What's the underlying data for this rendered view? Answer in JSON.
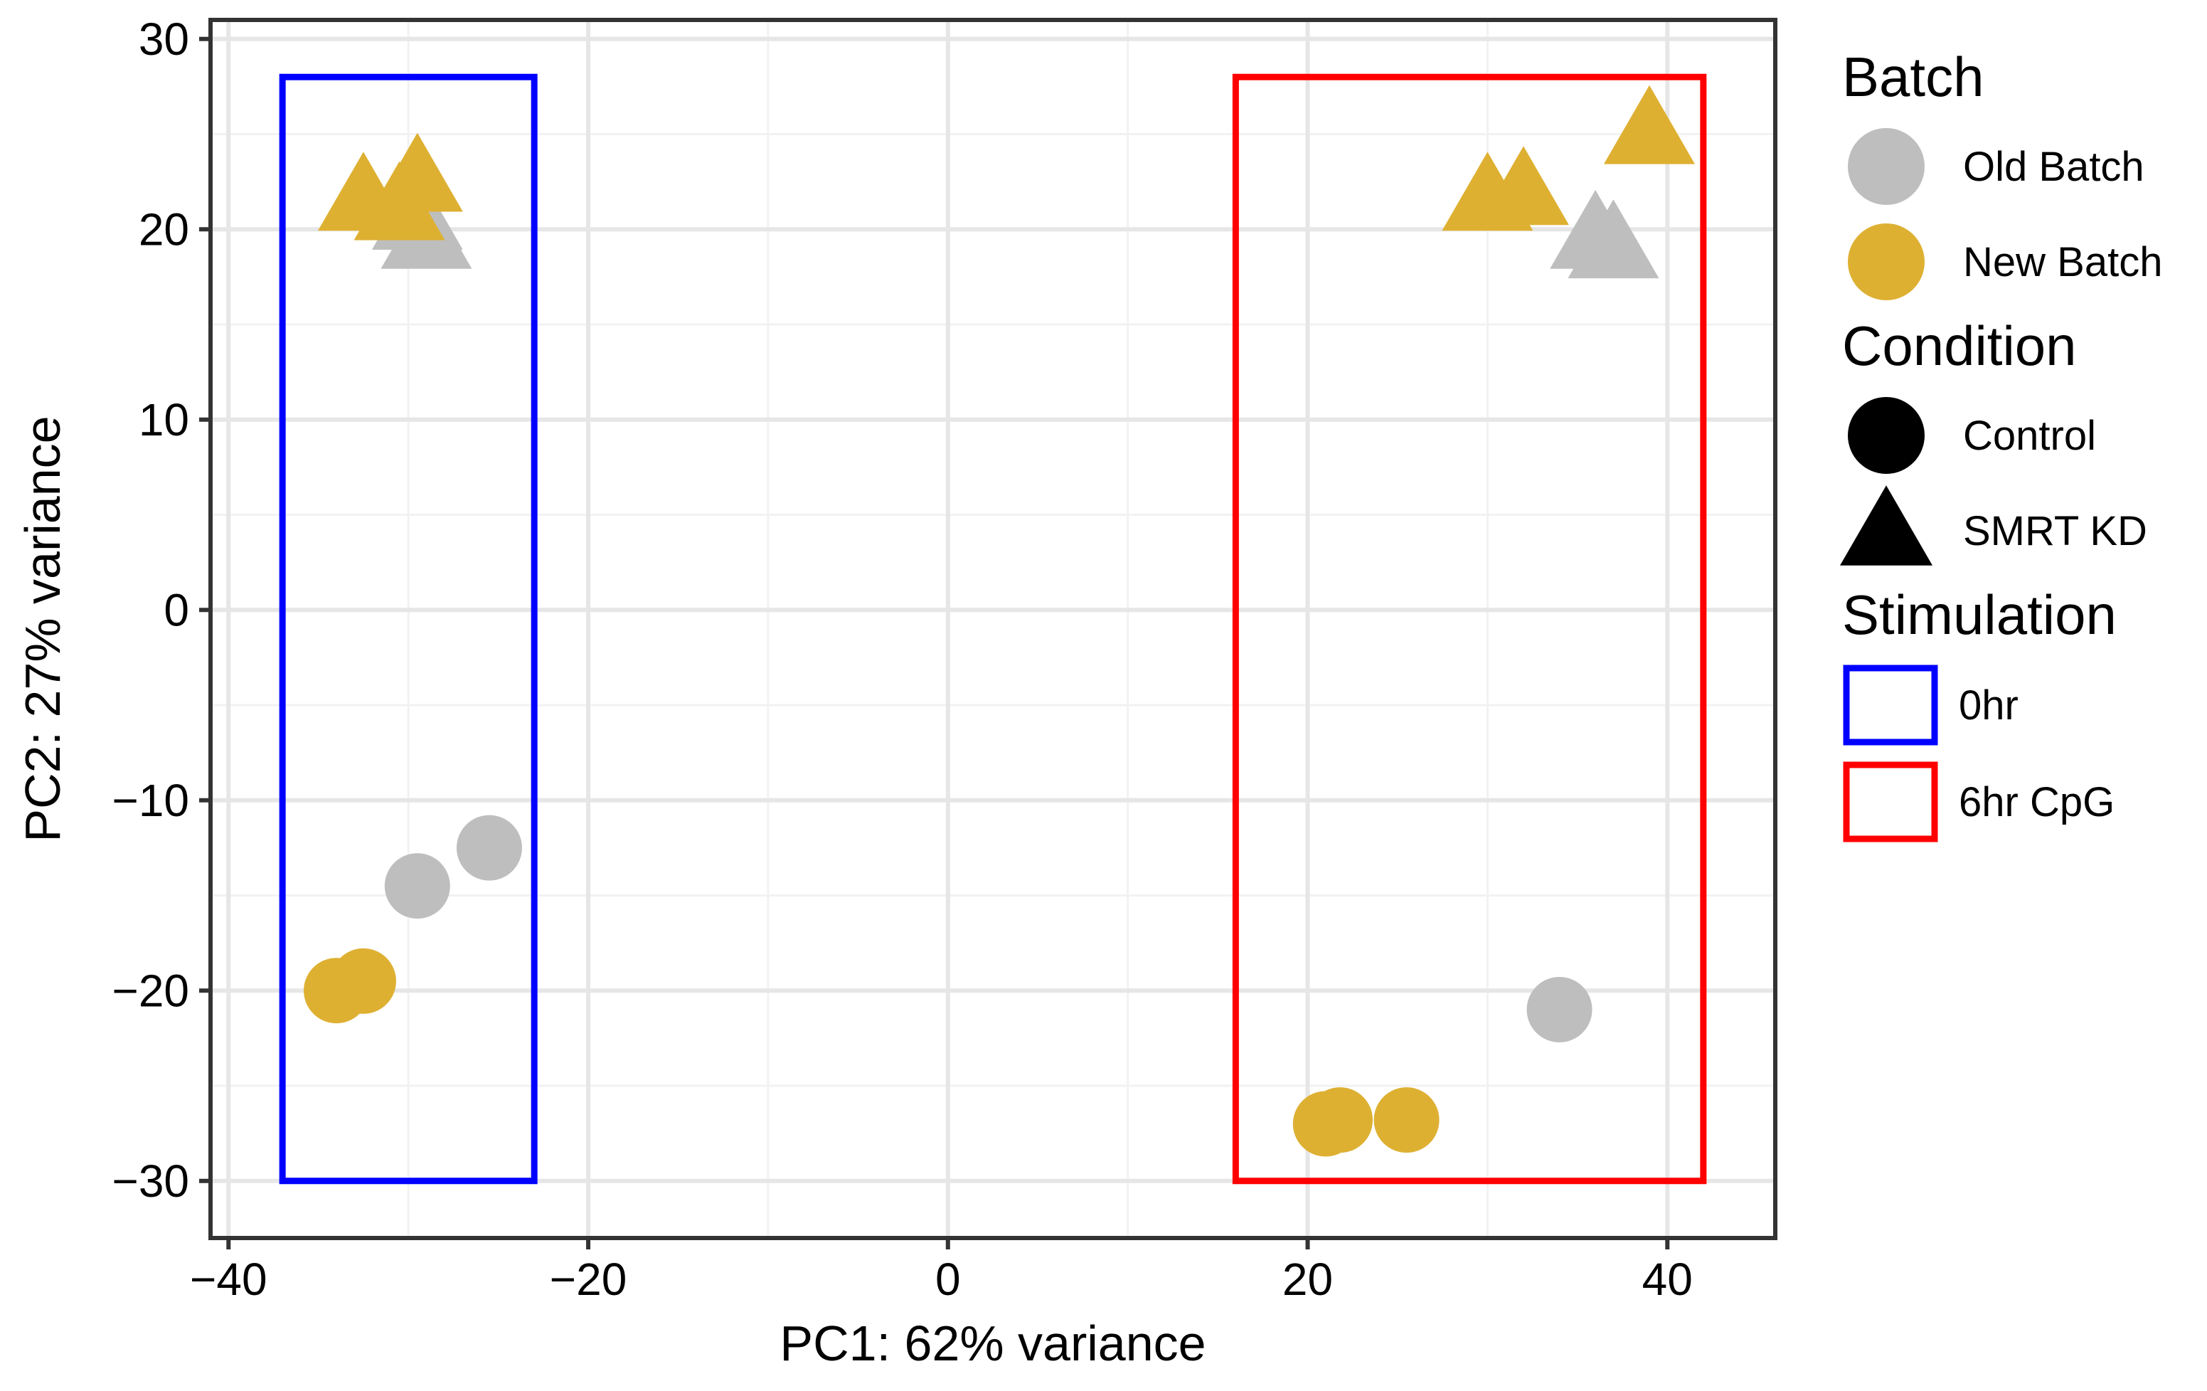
{
  "chart_data": {
    "type": "scatter",
    "title": "",
    "xlabel": "PC1: 62% variance",
    "ylabel": "PC2: 27% variance",
    "xlim": [
      -41,
      46
    ],
    "ylim": [
      -33,
      31
    ],
    "x_ticks": [
      -40,
      -20,
      0,
      20,
      40
    ],
    "y_ticks": [
      30,
      20,
      10,
      0,
      -10,
      -20,
      -30
    ],
    "x_tick_labels": [
      "−40",
      "−20",
      "0",
      "20",
      "40"
    ],
    "y_tick_labels": [
      "30",
      "20",
      "10",
      "0",
      "−10",
      "−20",
      "−30"
    ],
    "grid": true,
    "colors": {
      "Old Batch": "#BEBEBE",
      "New Batch": "#DEB032",
      "0hr": "#0000FF",
      "6hr CpG": "#FF0000",
      "grid_major": "#E6E6E6",
      "grid_minor": "#F2F2F2",
      "panel_border": "#333333"
    },
    "points": [
      {
        "x": -32.5,
        "y": 21.5,
        "batch": "New Batch",
        "condition": "SMRT KD"
      },
      {
        "x": -29.5,
        "y": 20.5,
        "batch": "Old Batch",
        "condition": "SMRT KD"
      },
      {
        "x": -29.0,
        "y": 19.5,
        "batch": "Old Batch",
        "condition": "SMRT KD"
      },
      {
        "x": -30.5,
        "y": 21.0,
        "batch": "New Batch",
        "condition": "SMRT KD"
      },
      {
        "x": -29.5,
        "y": 22.5,
        "batch": "New Batch",
        "condition": "SMRT KD"
      },
      {
        "x": -25.5,
        "y": -12.5,
        "batch": "Old Batch",
        "condition": "Control"
      },
      {
        "x": -29.5,
        "y": -14.5,
        "batch": "Old Batch",
        "condition": "Control"
      },
      {
        "x": -32.5,
        "y": -19.5,
        "batch": "New Batch",
        "condition": "Control"
      },
      {
        "x": -34.0,
        "y": -20.0,
        "batch": "New Batch",
        "condition": "Control"
      },
      {
        "x": 36.0,
        "y": 19.5,
        "batch": "Old Batch",
        "condition": "SMRT KD"
      },
      {
        "x": 37.0,
        "y": 19.0,
        "batch": "Old Batch",
        "condition": "SMRT KD"
      },
      {
        "x": 30.0,
        "y": 21.5,
        "batch": "New Batch",
        "condition": "SMRT KD"
      },
      {
        "x": 32.0,
        "y": 21.8,
        "batch": "New Batch",
        "condition": "SMRT KD"
      },
      {
        "x": 39.0,
        "y": 25.0,
        "batch": "New Batch",
        "condition": "SMRT KD"
      },
      {
        "x": 34.0,
        "y": -21.0,
        "batch": "Old Batch",
        "condition": "Control"
      },
      {
        "x": 21.0,
        "y": -27.0,
        "batch": "New Batch",
        "condition": "Control"
      },
      {
        "x": 21.8,
        "y": -26.8,
        "batch": "New Batch",
        "condition": "Control"
      },
      {
        "x": 25.5,
        "y": -26.8,
        "batch": "New Batch",
        "condition": "Control"
      }
    ],
    "regions": [
      {
        "stimulation": "0hr",
        "x_range": [
          -37,
          -23
        ],
        "y_range": [
          -30,
          28
        ]
      },
      {
        "stimulation": "6hr CpG",
        "x_range": [
          16,
          42
        ],
        "y_range": [
          -30,
          28
        ]
      }
    ],
    "legend": {
      "placement": "right",
      "groups": [
        {
          "title": "Batch",
          "type": "fill",
          "items": [
            "Old Batch",
            "New Batch"
          ]
        },
        {
          "title": "Condition",
          "type": "shape",
          "items": [
            "Control",
            "SMRT KD"
          ]
        },
        {
          "title": "Stimulation",
          "type": "outline",
          "items": [
            "0hr",
            "6hr CpG"
          ]
        }
      ]
    }
  }
}
